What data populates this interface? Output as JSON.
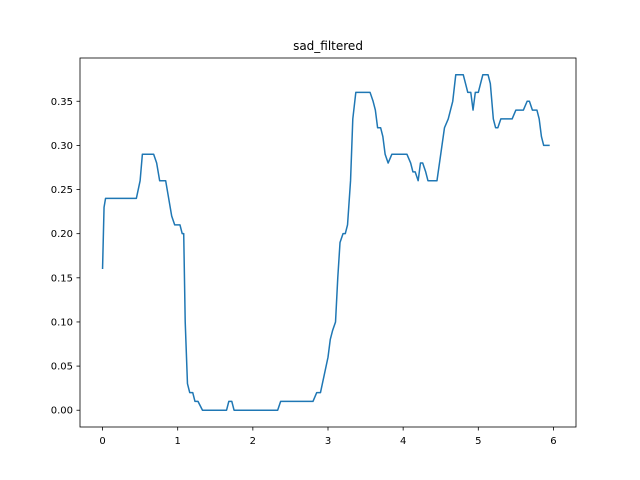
{
  "chart_data": {
    "type": "line",
    "title": "sad_filtered",
    "xlabel": "",
    "ylabel": "",
    "xlim": [
      -0.3,
      6.3
    ],
    "ylim": [
      -0.019,
      0.399
    ],
    "xticks": [
      0,
      1,
      2,
      3,
      4,
      5,
      6
    ],
    "xtick_labels": [
      "0",
      "1",
      "2",
      "3",
      "4",
      "5",
      "6"
    ],
    "yticks": [
      0.0,
      0.05,
      0.1,
      0.15,
      0.2,
      0.25,
      0.3,
      0.35
    ],
    "ytick_labels": [
      "0.00",
      "0.05",
      "0.10",
      "0.15",
      "0.20",
      "0.25",
      "0.30",
      "0.35"
    ],
    "grid": false,
    "series": [
      {
        "color": "#1f77b4",
        "x": [
          0.0,
          0.02,
          0.04,
          0.1,
          0.2,
          0.3,
          0.4,
          0.45,
          0.5,
          0.53,
          0.6,
          0.65,
          0.68,
          0.72,
          0.76,
          0.8,
          0.84,
          0.88,
          0.92,
          0.96,
          1.0,
          1.03,
          1.06,
          1.08,
          1.1,
          1.13,
          1.16,
          1.2,
          1.23,
          1.27,
          1.33,
          1.4,
          1.5,
          1.55,
          1.6,
          1.65,
          1.68,
          1.72,
          1.75,
          1.85,
          1.95,
          2.05,
          2.15,
          2.25,
          2.33,
          2.37,
          2.5,
          2.6,
          2.7,
          2.75,
          2.8,
          2.85,
          2.9,
          2.95,
          3.0,
          3.03,
          3.06,
          3.1,
          3.13,
          3.16,
          3.2,
          3.23,
          3.26,
          3.3,
          3.33,
          3.37,
          3.45,
          3.52,
          3.56,
          3.6,
          3.63,
          3.66,
          3.7,
          3.73,
          3.76,
          3.8,
          3.85,
          3.9,
          3.95,
          4.0,
          4.05,
          4.1,
          4.13,
          4.16,
          4.2,
          4.23,
          4.26,
          4.3,
          4.33,
          4.36,
          4.4,
          4.45,
          4.5,
          4.55,
          4.6,
          4.63,
          4.66,
          4.7,
          4.73,
          4.76,
          4.8,
          4.83,
          4.86,
          4.9,
          4.93,
          4.96,
          5.0,
          5.03,
          5.06,
          5.1,
          5.13,
          5.16,
          5.2,
          5.23,
          5.26,
          5.3,
          5.33,
          5.4,
          5.45,
          5.5,
          5.55,
          5.6,
          5.65,
          5.68,
          5.72,
          5.75,
          5.78,
          5.81,
          5.84,
          5.87,
          5.9,
          5.95
        ],
        "y": [
          0.16,
          0.23,
          0.24,
          0.24,
          0.24,
          0.24,
          0.24,
          0.24,
          0.26,
          0.29,
          0.29,
          0.29,
          0.29,
          0.28,
          0.26,
          0.26,
          0.26,
          0.24,
          0.22,
          0.21,
          0.21,
          0.21,
          0.2,
          0.2,
          0.1,
          0.03,
          0.02,
          0.02,
          0.01,
          0.01,
          0.0,
          0.0,
          0.0,
          0.0,
          0.0,
          0.0,
          0.01,
          0.01,
          0.0,
          0.0,
          0.0,
          0.0,
          0.0,
          0.0,
          0.0,
          0.01,
          0.01,
          0.01,
          0.01,
          0.01,
          0.01,
          0.02,
          0.02,
          0.04,
          0.06,
          0.08,
          0.09,
          0.1,
          0.15,
          0.19,
          0.2,
          0.2,
          0.21,
          0.26,
          0.33,
          0.36,
          0.36,
          0.36,
          0.36,
          0.35,
          0.34,
          0.32,
          0.32,
          0.31,
          0.29,
          0.28,
          0.29,
          0.29,
          0.29,
          0.29,
          0.29,
          0.28,
          0.27,
          0.27,
          0.26,
          0.28,
          0.28,
          0.27,
          0.26,
          0.26,
          0.26,
          0.26,
          0.29,
          0.32,
          0.33,
          0.34,
          0.35,
          0.38,
          0.38,
          0.38,
          0.38,
          0.37,
          0.36,
          0.36,
          0.34,
          0.36,
          0.36,
          0.37,
          0.38,
          0.38,
          0.38,
          0.37,
          0.33,
          0.32,
          0.32,
          0.33,
          0.33,
          0.33,
          0.33,
          0.34,
          0.34,
          0.34,
          0.35,
          0.35,
          0.34,
          0.34,
          0.34,
          0.33,
          0.31,
          0.3,
          0.3,
          0.3
        ]
      }
    ]
  }
}
